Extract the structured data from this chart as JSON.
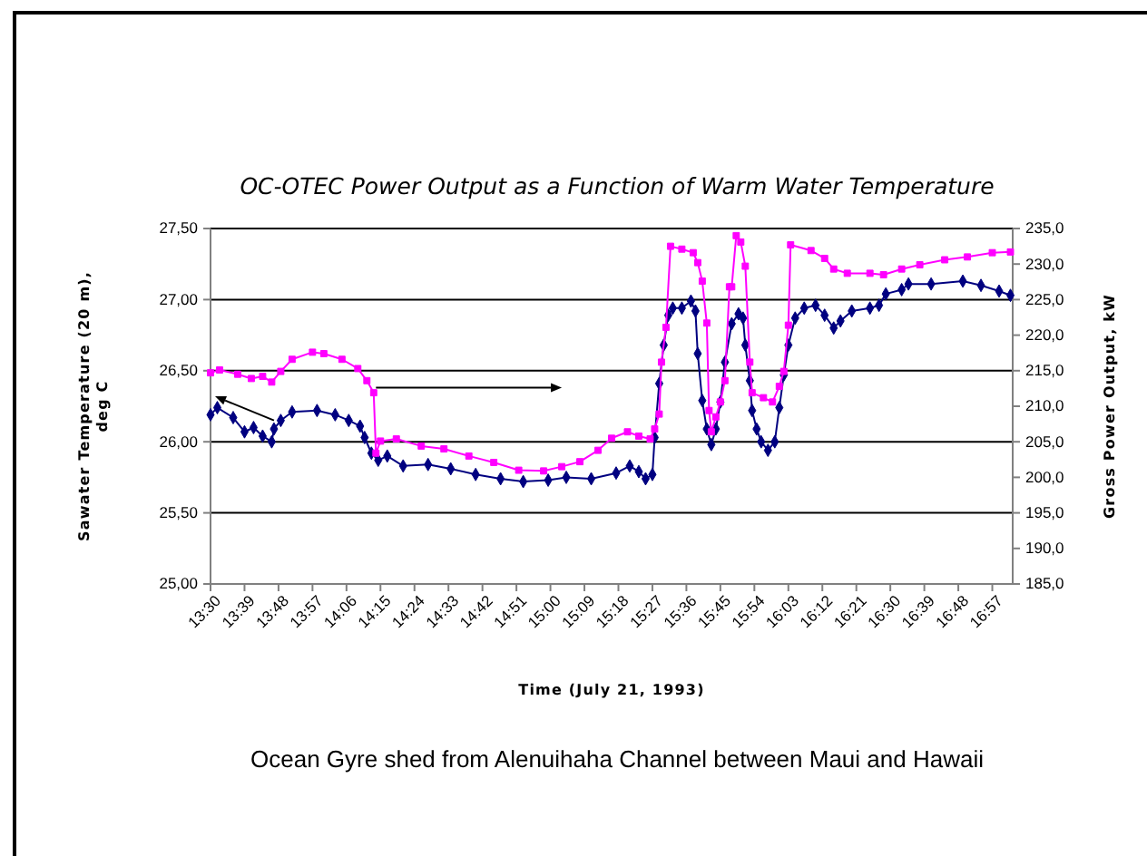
{
  "chart_data": {
    "type": "line",
    "title": "OC-OTEC Power Output as a Function of Warm Water Temperature",
    "xlabel": "Time (July 21, 1993)",
    "ylabel": "Sawater Temperature (20 m), deg C",
    "y2label": "Gross Power Output, kW",
    "annotations": [
      "Ocean Gyre shed from Alenuihaha Channel between Maui and Hawaii"
    ],
    "xlim": [
      13.5,
      17.04
    ],
    "xticks": [
      {
        "value": 13.5,
        "label": "13:30"
      },
      {
        "value": 13.65,
        "label": "13:39"
      },
      {
        "value": 13.8,
        "label": "13:48"
      },
      {
        "value": 13.95,
        "label": "13:57"
      },
      {
        "value": 14.1,
        "label": "14:06"
      },
      {
        "value": 14.25,
        "label": "14:15"
      },
      {
        "value": 14.4,
        "label": "14:24"
      },
      {
        "value": 14.55,
        "label": "14:33"
      },
      {
        "value": 14.7,
        "label": "14:42"
      },
      {
        "value": 14.85,
        "label": "14:51"
      },
      {
        "value": 15.0,
        "label": "15:00"
      },
      {
        "value": 15.15,
        "label": "15:09"
      },
      {
        "value": 15.3,
        "label": "15:18"
      },
      {
        "value": 15.45,
        "label": "15:27"
      },
      {
        "value": 15.6,
        "label": "15:36"
      },
      {
        "value": 15.75,
        "label": "15:45"
      },
      {
        "value": 15.9,
        "label": "15:54"
      },
      {
        "value": 16.05,
        "label": "16:03"
      },
      {
        "value": 16.2,
        "label": "16:12"
      },
      {
        "value": 16.35,
        "label": "16:21"
      },
      {
        "value": 16.5,
        "label": "16:30"
      },
      {
        "value": 16.65,
        "label": "16:39"
      },
      {
        "value": 16.8,
        "label": "16:48"
      },
      {
        "value": 16.95,
        "label": "16:57"
      }
    ],
    "ylim": [
      25,
      27.5
    ],
    "yticks": [
      {
        "value": 25,
        "label": "25,00"
      },
      {
        "value": 25.5,
        "label": "25,50"
      },
      {
        "value": 26,
        "label": "26,00"
      },
      {
        "value": 26.5,
        "label": "26,50"
      },
      {
        "value": 27,
        "label": "27,00"
      },
      {
        "value": 27.5,
        "label": "27,50"
      }
    ],
    "y2lim": [
      185,
      235
    ],
    "y2ticks": [
      {
        "value": 185,
        "label": "185,0"
      },
      {
        "value": 190,
        "label": "190,0"
      },
      {
        "value": 195,
        "label": "195,0"
      },
      {
        "value": 200,
        "label": "200,0"
      },
      {
        "value": 205,
        "label": "205,0"
      },
      {
        "value": 210,
        "label": "210,0"
      },
      {
        "value": 215,
        "label": "215,0"
      },
      {
        "value": 220,
        "label": "220,0"
      },
      {
        "value": 225,
        "label": "225,0"
      },
      {
        "value": 230,
        "label": "230,0"
      },
      {
        "value": 235,
        "label": "235,0"
      }
    ],
    "grid": "y",
    "series": [
      {
        "color": "#000080",
        "marker": "diamond",
        "x": [
          13.5,
          13.53,
          13.6,
          13.65,
          13.69,
          13.73,
          13.77,
          13.78,
          13.81,
          13.86,
          13.97,
          14.05,
          14.11,
          14.16,
          14.18,
          14.21,
          14.24,
          14.28,
          14.35,
          14.46,
          14.56,
          14.67,
          14.78,
          14.88,
          14.99,
          15.07,
          15.18,
          15.29,
          15.35,
          15.39,
          15.42,
          15.45,
          15.46,
          15.48,
          15.5,
          15.52,
          15.54,
          15.58,
          15.62,
          15.64,
          15.65,
          15.67,
          15.69,
          15.71,
          15.73,
          15.75,
          15.77,
          15.8,
          15.83,
          15.85,
          15.86,
          15.88,
          15.89,
          15.91,
          15.93,
          15.96,
          15.99,
          16.01,
          16.03,
          16.05,
          16.08,
          16.12,
          16.17,
          16.21,
          16.25,
          16.28,
          16.33,
          16.41,
          16.45,
          16.48,
          16.55,
          16.58,
          16.68,
          16.82,
          16.9,
          16.98,
          17.03
        ],
        "values": [
          26.19,
          26.24,
          26.17,
          26.07,
          26.1,
          26.04,
          26.0,
          26.09,
          26.15,
          26.21,
          26.22,
          26.19,
          26.15,
          26.11,
          26.03,
          25.92,
          25.87,
          25.9,
          25.83,
          25.84,
          25.81,
          25.77,
          25.74,
          25.72,
          25.73,
          25.75,
          25.74,
          25.78,
          25.83,
          25.79,
          25.74,
          25.77,
          26.03,
          26.41,
          26.68,
          26.89,
          26.94,
          26.94,
          26.99,
          26.92,
          26.62,
          26.29,
          26.09,
          25.98,
          26.09,
          26.28,
          26.56,
          26.83,
          26.9,
          26.87,
          26.68,
          26.43,
          26.22,
          26.09,
          26.0,
          25.94,
          26.0,
          26.24,
          26.47,
          26.68,
          26.87,
          26.94,
          26.96,
          26.89,
          26.8,
          26.85,
          26.92,
          26.94,
          26.96,
          27.04,
          27.07,
          27.11,
          27.11,
          27.13,
          27.1,
          27.06,
          27.03
        ]
      },
      {
        "color": "#ff00ff",
        "marker": "square",
        "axis": "y2",
        "x": [
          13.5,
          13.54,
          13.62,
          13.68,
          13.73,
          13.77,
          13.81,
          13.86,
          13.95,
          14.0,
          14.08,
          14.15,
          14.19,
          14.22,
          14.23,
          14.25,
          14.32,
          14.43,
          14.53,
          14.64,
          14.75,
          14.86,
          14.97,
          15.05,
          15.13,
          15.21,
          15.27,
          15.34,
          15.39,
          15.44,
          15.46,
          15.48,
          15.49,
          15.51,
          15.53,
          15.58,
          15.63,
          15.65,
          15.67,
          15.69,
          15.7,
          15.71,
          15.73,
          15.75,
          15.77,
          15.79,
          15.8,
          15.82,
          15.84,
          15.86,
          15.88,
          15.89,
          15.94,
          15.98,
          16.01,
          16.03,
          16.05,
          16.06,
          16.15,
          16.21,
          16.25,
          16.31,
          16.41,
          16.47,
          16.55,
          16.63,
          16.74,
          16.84,
          16.95,
          17.03
        ],
        "values": [
          214.7,
          215.1,
          214.5,
          213.9,
          214.2,
          213.4,
          214.9,
          216.6,
          217.6,
          217.4,
          216.6,
          215.3,
          213.6,
          211.9,
          203.4,
          205.1,
          205.4,
          204.4,
          204.0,
          203.0,
          202.1,
          201.0,
          200.9,
          201.5,
          202.2,
          203.8,
          205.5,
          206.4,
          205.8,
          205.4,
          206.8,
          208.9,
          216.2,
          221.1,
          232.5,
          232.1,
          231.6,
          230.2,
          227.6,
          221.7,
          209.4,
          206.4,
          208.5,
          210.6,
          213.6,
          226.8,
          226.8,
          234.0,
          233.1,
          229.7,
          216.2,
          211.9,
          211.2,
          210.6,
          212.8,
          214.9,
          221.4,
          232.7,
          231.9,
          230.8,
          229.3,
          228.7,
          228.7,
          228.5,
          229.3,
          229.9,
          230.6,
          231.0,
          231.6,
          231.7
        ]
      }
    ]
  }
}
